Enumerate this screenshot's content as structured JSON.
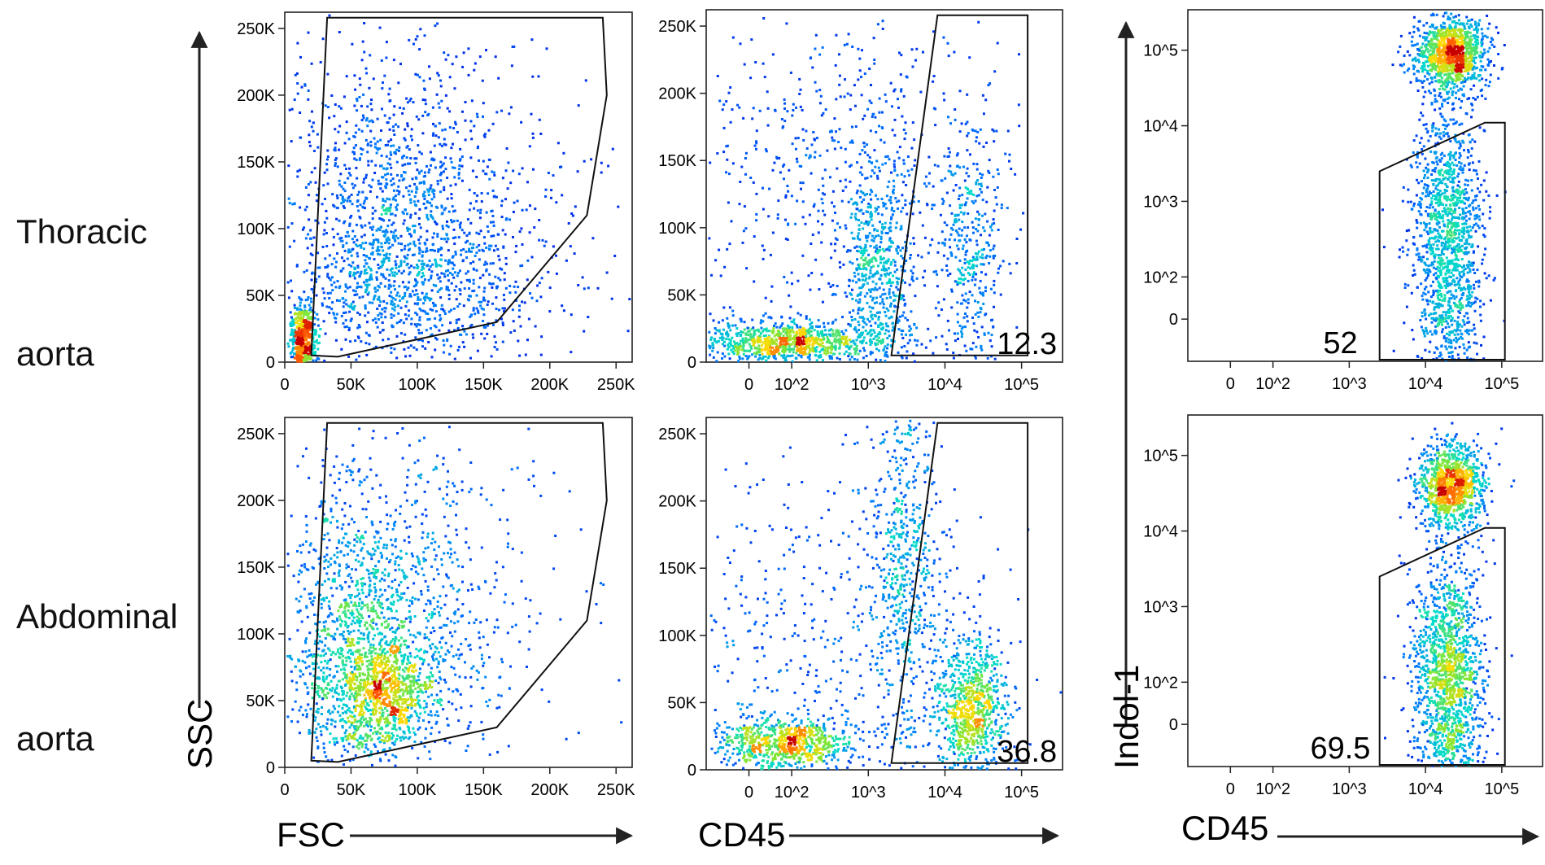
{
  "rows": [
    {
      "label_line1": "Thoracic",
      "label_line2": "aorta"
    },
    {
      "label_line1": "Abdominal",
      "label_line2": "aorta"
    }
  ],
  "axis_labels": {
    "fsc": "FSC",
    "ssc": "SSC",
    "cd45_mid": "CD45",
    "cd45_right": "CD45",
    "indol": "Indol-1"
  },
  "chart_data": [
    {
      "type": "scatter",
      "panel": "thoracic-fsc-ssc",
      "row": "Thoracic aorta",
      "xlabel": "FSC",
      "ylabel": "SSC",
      "xlim": [
        0,
        262144
      ],
      "ylim": [
        0,
        262144
      ],
      "x_ticks": [
        "0",
        "50K",
        "100K",
        "150K",
        "200K",
        "250K"
      ],
      "y_ticks": [
        "0",
        "50K",
        "100K",
        "150K",
        "200K",
        "250K"
      ],
      "gate_polygon": [
        [
          20000,
          5000
        ],
        [
          32000,
          258000
        ],
        [
          240000,
          258000
        ],
        [
          243000,
          200000
        ],
        [
          228000,
          110000
        ],
        [
          160000,
          30000
        ],
        [
          40000,
          4000
        ]
      ],
      "gate_value": ""
    },
    {
      "type": "scatter",
      "panel": "thoracic-cd45-ssc",
      "row": "Thoracic aorta",
      "xlabel": "CD45",
      "ylabel": "",
      "xscale": "biexponential",
      "ylim": [
        0,
        262144
      ],
      "x_ticks": [
        "0",
        "10^2",
        "10^3",
        "10^4",
        "10^5"
      ],
      "y_ticks": [
        "0",
        "50K",
        "100K",
        "150K",
        "200K",
        "250K"
      ],
      "gate_polygon": [
        [
          2000,
          5000
        ],
        [
          8000,
          258000
        ],
        [
          120000,
          258000
        ],
        [
          120000,
          5000
        ]
      ],
      "gate_value": "12.3"
    },
    {
      "type": "scatter",
      "panel": "thoracic-cd45-indol1",
      "row": "Thoracic aorta",
      "xlabel": "CD45",
      "ylabel": "Indol-1",
      "xscale": "biexponential",
      "yscale": "biexponential",
      "x_ticks": [
        "0",
        "10^2",
        "10^3",
        "10^4",
        "10^5"
      ],
      "y_ticks": [
        "0",
        "10^2",
        "10^3",
        "10^4",
        "10^5"
      ],
      "gate_polygon": [
        [
          2500,
          2500
        ],
        [
          60000,
          11000
        ],
        [
          110000,
          11000
        ],
        [
          110000,
          -200
        ],
        [
          2500,
          -200
        ]
      ],
      "gate_value": "52"
    },
    {
      "type": "scatter",
      "panel": "abdominal-fsc-ssc",
      "row": "Abdominal aorta",
      "xlabel": "FSC",
      "ylabel": "SSC",
      "xlim": [
        0,
        262144
      ],
      "ylim": [
        0,
        262144
      ],
      "x_ticks": [
        "0",
        "50K",
        "100K",
        "150K",
        "200K",
        "250K"
      ],
      "y_ticks": [
        "0",
        "50K",
        "100K",
        "150K",
        "200K",
        "250K"
      ],
      "gate_polygon": [
        [
          20000,
          5000
        ],
        [
          32000,
          258000
        ],
        [
          240000,
          258000
        ],
        [
          243000,
          200000
        ],
        [
          228000,
          110000
        ],
        [
          160000,
          30000
        ],
        [
          40000,
          4000
        ]
      ],
      "gate_value": ""
    },
    {
      "type": "scatter",
      "panel": "abdominal-cd45-ssc",
      "row": "Abdominal aorta",
      "xlabel": "CD45",
      "ylabel": "",
      "xscale": "biexponential",
      "ylim": [
        0,
        262144
      ],
      "x_ticks": [
        "0",
        "10^2",
        "10^3",
        "10^4",
        "10^5"
      ],
      "y_ticks": [
        "0",
        "50K",
        "100K",
        "150K",
        "200K",
        "250K"
      ],
      "gate_polygon": [
        [
          2000,
          5000
        ],
        [
          8000,
          258000
        ],
        [
          120000,
          258000
        ],
        [
          120000,
          5000
        ]
      ],
      "gate_value": "36.8"
    },
    {
      "type": "scatter",
      "panel": "abdominal-cd45-indol1",
      "row": "Abdominal aorta",
      "xlabel": "CD45",
      "ylabel": "Indol-1",
      "xscale": "biexponential",
      "yscale": "biexponential",
      "x_ticks": [
        "0",
        "10^2",
        "10^3",
        "10^4",
        "10^5"
      ],
      "y_ticks": [
        "0",
        "10^2",
        "10^3",
        "10^4",
        "10^5"
      ],
      "gate_polygon": [
        [
          2500,
          2500
        ],
        [
          60000,
          11000
        ],
        [
          110000,
          11000
        ],
        [
          110000,
          -200
        ],
        [
          2500,
          -200
        ]
      ],
      "gate_value": "69.5"
    }
  ]
}
